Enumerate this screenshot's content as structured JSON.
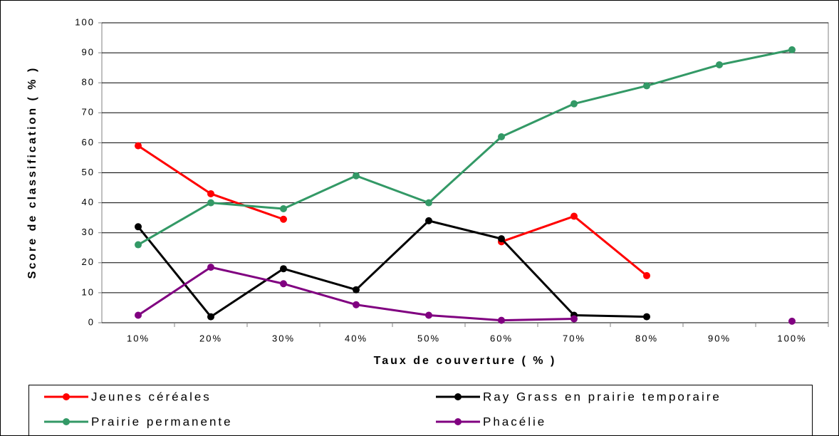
{
  "chart_data": {
    "type": "line",
    "x_label": "Taux de couverture ( % )",
    "y_label": "Score de classification ( % )",
    "categories": [
      "10%",
      "20%",
      "30%",
      "40%",
      "50%",
      "60%",
      "70%",
      "80%",
      "90%",
      "100%"
    ],
    "series": [
      {
        "name": "Jeunes céréales",
        "color": "#ff0000",
        "values": [
          59,
          43,
          34.5,
          null,
          null,
          27,
          35.5,
          15.7,
          null,
          null
        ]
      },
      {
        "name": "Ray Grass en prairie temporaire",
        "color": "#000000",
        "values": [
          32,
          2,
          18,
          11,
          34,
          28,
          2.5,
          2,
          null,
          null
        ]
      },
      {
        "name": "Prairie permanente",
        "color": "#339966",
        "values": [
          26,
          40,
          38,
          49,
          40,
          62,
          73,
          79,
          86,
          91
        ]
      },
      {
        "name": "Phacélie",
        "color": "#800080",
        "values": [
          2.5,
          18.5,
          13,
          6,
          2.5,
          0.8,
          1.3,
          null,
          null,
          0.5
        ]
      }
    ],
    "ylim": [
      0,
      100
    ],
    "yticks": [
      0,
      10,
      20,
      30,
      40,
      50,
      60,
      70,
      80,
      90,
      100
    ],
    "grid": true
  }
}
